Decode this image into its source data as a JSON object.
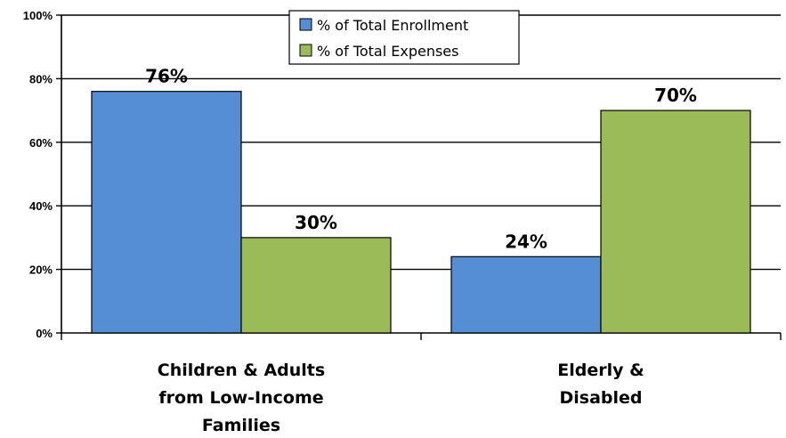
{
  "chart_data": {
    "type": "bar",
    "categories": [
      [
        "Children & Adults",
        "from Low-Income",
        "Families"
      ],
      [
        "Elderly &",
        "Disabled"
      ]
    ],
    "series": [
      {
        "name": "% of Total Enrollment",
        "values": [
          76,
          24
        ],
        "labels": [
          "76%",
          "24%"
        ],
        "color": "#558ED5"
      },
      {
        "name": "% of Total Expenses",
        "values": [
          30,
          70
        ],
        "labels": [
          "30%",
          "70%"
        ],
        "color": "#9BBB59"
      }
    ],
    "ylim": [
      0,
      100
    ],
    "y_ticks": [
      0,
      20,
      40,
      60,
      80,
      100
    ],
    "y_tick_labels": [
      "0%",
      "20%",
      "40%",
      "60%",
      "80%",
      "100%"
    ],
    "grid": true,
    "legend_position": "top-center",
    "title": "",
    "xlabel": "",
    "ylabel": ""
  }
}
